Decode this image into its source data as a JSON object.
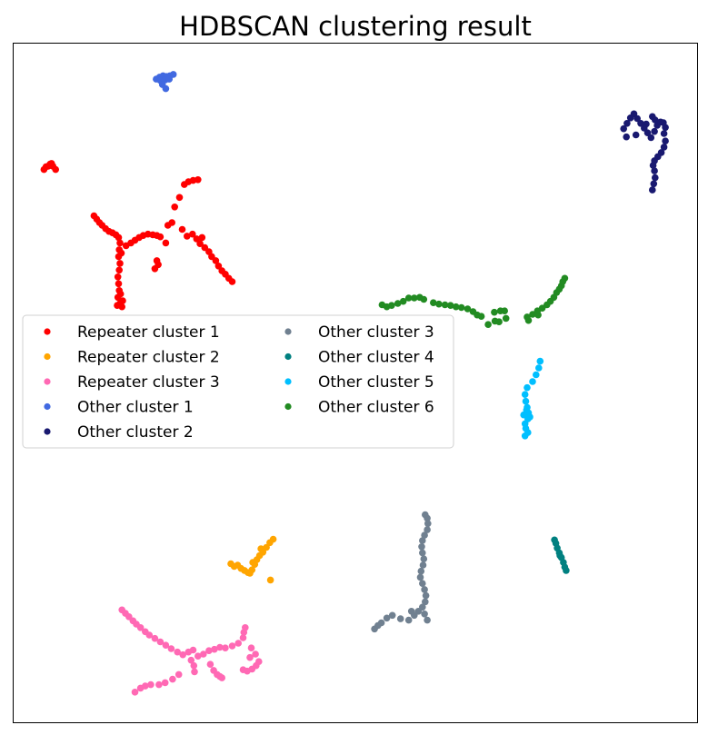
{
  "chart_data": {
    "type": "scatter",
    "title": "HDBSCAN clustering result",
    "xlabel": "",
    "ylabel": "",
    "xlim": [
      0,
      100
    ],
    "ylim": [
      0,
      100
    ],
    "grid": false,
    "axis_ticks": false,
    "legend": {
      "placement": "center-left",
      "columns": 2
    },
    "series": [
      {
        "name": "Repeater cluster 1",
        "color": "#ff0000",
        "points": [
          [
            4.5,
            81.4
          ],
          [
            5.1,
            81.9
          ],
          [
            5.4,
            82.2
          ],
          [
            5.8,
            81.9
          ],
          [
            6.2,
            81.4
          ],
          [
            4.8,
            81.8
          ],
          [
            5.6,
            82.3
          ],
          [
            11.8,
            74.6
          ],
          [
            12.2,
            74.1
          ],
          [
            12.6,
            73.6
          ],
          [
            13.0,
            73.2
          ],
          [
            13.5,
            72.7
          ],
          [
            14.0,
            72.3
          ],
          [
            14.5,
            72.1
          ],
          [
            15.0,
            71.8
          ],
          [
            15.4,
            71.4
          ],
          [
            15.6,
            70.6
          ],
          [
            15.5,
            69.6
          ],
          [
            15.4,
            68.6
          ],
          [
            15.6,
            67.6
          ],
          [
            15.5,
            66.6
          ],
          [
            15.3,
            65.6
          ],
          [
            15.4,
            64.6
          ],
          [
            15.5,
            63.6
          ],
          [
            15.3,
            62.6
          ],
          [
            15.6,
            61.7
          ],
          [
            15.9,
            61.2
          ],
          [
            15.2,
            61.4
          ],
          [
            16.0,
            62.1
          ],
          [
            15.7,
            63.1
          ],
          [
            15.8,
            69.1
          ],
          [
            16.5,
            70.2
          ],
          [
            17.2,
            70.6
          ],
          [
            17.8,
            71.0
          ],
          [
            18.4,
            71.4
          ],
          [
            19.0,
            71.7
          ],
          [
            19.7,
            71.9
          ],
          [
            20.4,
            71.8
          ],
          [
            21.0,
            71.7
          ],
          [
            21.5,
            71.5
          ],
          [
            20.7,
            66.8
          ],
          [
            21.2,
            67.4
          ],
          [
            21.0,
            68.0
          ],
          [
            22.3,
            70.6
          ],
          [
            22.6,
            73.2
          ],
          [
            23.2,
            73.6
          ],
          [
            23.6,
            75.9
          ],
          [
            24.3,
            77.3
          ],
          [
            25.0,
            79.2
          ],
          [
            25.6,
            79.6
          ],
          [
            26.3,
            79.8
          ],
          [
            27.0,
            79.9
          ],
          [
            24.7,
            72.6
          ],
          [
            25.4,
            71.6
          ],
          [
            26.2,
            71.9
          ],
          [
            26.8,
            71.2
          ],
          [
            27.3,
            70.5
          ],
          [
            28.0,
            69.9
          ],
          [
            28.6,
            69.3
          ],
          [
            29.0,
            68.6
          ],
          [
            29.6,
            68.0
          ],
          [
            30.0,
            67.2
          ],
          [
            30.5,
            66.5
          ],
          [
            31.0,
            66.0
          ],
          [
            31.5,
            65.4
          ],
          [
            32.0,
            64.9
          ],
          [
            27.6,
            71.4
          ]
        ]
      },
      {
        "name": "Repeater cluster 2",
        "color": "#ffa500",
        "points": [
          [
            31.8,
            23.4
          ],
          [
            32.3,
            23.0
          ],
          [
            32.8,
            23.2
          ],
          [
            33.3,
            22.7
          ],
          [
            33.8,
            22.4
          ],
          [
            34.3,
            22.1
          ],
          [
            34.9,
            22.5
          ],
          [
            35.3,
            23.3
          ],
          [
            35.6,
            24.0
          ],
          [
            36.0,
            24.6
          ],
          [
            36.5,
            25.1
          ],
          [
            37.0,
            25.8
          ],
          [
            37.5,
            26.5
          ],
          [
            38.0,
            27.0
          ],
          [
            37.6,
            21.0
          ],
          [
            34.6,
            22.0
          ],
          [
            35.0,
            23.6
          ],
          [
            36.2,
            25.6
          ]
        ]
      },
      {
        "name": "Repeater cluster 3",
        "color": "#ff69b4",
        "points": [
          [
            15.9,
            16.6
          ],
          [
            16.4,
            16.1
          ],
          [
            16.9,
            15.6
          ],
          [
            17.5,
            15.0
          ],
          [
            18.0,
            14.5
          ],
          [
            18.6,
            14.0
          ],
          [
            19.3,
            13.4
          ],
          [
            19.9,
            12.9
          ],
          [
            20.7,
            12.4
          ],
          [
            21.5,
            11.9
          ],
          [
            22.3,
            11.4
          ],
          [
            23.1,
            10.9
          ],
          [
            24.0,
            10.4
          ],
          [
            24.8,
            10.0
          ],
          [
            25.6,
            10.4
          ],
          [
            26.3,
            10.7
          ],
          [
            27.0,
            9.8
          ],
          [
            27.8,
            10.1
          ],
          [
            28.6,
            10.6
          ],
          [
            29.4,
            10.8
          ],
          [
            30.2,
            11.1
          ],
          [
            31.0,
            11.0
          ],
          [
            32.0,
            11.3
          ],
          [
            32.9,
            11.7
          ],
          [
            33.6,
            12.5
          ],
          [
            33.7,
            13.3
          ],
          [
            33.9,
            14.0
          ],
          [
            26.0,
            9.2
          ],
          [
            26.4,
            8.4
          ],
          [
            26.5,
            7.5
          ],
          [
            28.8,
            8.6
          ],
          [
            29.3,
            7.7
          ],
          [
            29.8,
            7.1
          ],
          [
            30.2,
            6.8
          ],
          [
            30.5,
            6.6
          ],
          [
            17.8,
            4.5
          ],
          [
            18.6,
            5.1
          ],
          [
            19.3,
            5.4
          ],
          [
            20.1,
            5.6
          ],
          [
            21.3,
            5.6
          ],
          [
            22.2,
            5.9
          ],
          [
            23.3,
            6.4
          ],
          [
            24.2,
            7.1
          ],
          [
            34.6,
            9.6
          ],
          [
            35.4,
            10.1
          ],
          [
            35.9,
            9.0
          ],
          [
            35.5,
            8.4
          ],
          [
            34.9,
            7.9
          ],
          [
            34.2,
            7.6
          ],
          [
            33.6,
            7.8
          ],
          [
            34.8,
            11.0
          ]
        ]
      },
      {
        "name": "Other cluster 1",
        "color": "#4169e1",
        "points": [
          [
            20.9,
            94.7
          ],
          [
            21.4,
            95.0
          ],
          [
            21.9,
            95.2
          ],
          [
            22.4,
            95.1
          ],
          [
            22.9,
            95.2
          ],
          [
            23.4,
            95.4
          ],
          [
            21.5,
            94.5
          ],
          [
            22.2,
            94.6
          ],
          [
            22.8,
            94.7
          ],
          [
            21.8,
            93.9
          ],
          [
            22.3,
            93.3
          ]
        ]
      },
      {
        "name": "Other cluster 2",
        "color": "#191970",
        "points": [
          [
            89.2,
            87.4
          ],
          [
            89.7,
            88.2
          ],
          [
            90.2,
            89.0
          ],
          [
            90.7,
            89.6
          ],
          [
            91.2,
            88.9
          ],
          [
            91.7,
            88.2
          ],
          [
            92.2,
            87.5
          ],
          [
            92.7,
            86.8
          ],
          [
            93.2,
            86.1
          ],
          [
            93.7,
            87.0
          ],
          [
            94.1,
            87.9
          ],
          [
            94.6,
            88.4
          ],
          [
            95.0,
            88.3
          ],
          [
            95.3,
            87.6
          ],
          [
            95.1,
            86.7
          ],
          [
            95.3,
            85.6
          ],
          [
            95.1,
            84.7
          ],
          [
            94.7,
            83.9
          ],
          [
            94.2,
            83.3
          ],
          [
            93.7,
            82.7
          ],
          [
            93.5,
            82.0
          ],
          [
            93.7,
            81.2
          ],
          [
            93.8,
            80.2
          ],
          [
            93.6,
            79.3
          ],
          [
            93.4,
            78.4
          ],
          [
            93.8,
            88.7
          ],
          [
            92.5,
            88.1
          ],
          [
            91.0,
            86.5
          ],
          [
            89.6,
            86.2
          ],
          [
            93.4,
            89.2
          ]
        ]
      },
      {
        "name": "Other cluster 3",
        "color": "#708090",
        "points": [
          [
            52.8,
            13.8
          ],
          [
            53.3,
            14.3
          ],
          [
            53.8,
            14.7
          ],
          [
            54.6,
            15.4
          ],
          [
            55.4,
            15.8
          ],
          [
            56.6,
            15.3
          ],
          [
            57.8,
            15.1
          ],
          [
            58.6,
            15.8
          ],
          [
            59.2,
            16.4
          ],
          [
            59.8,
            17.0
          ],
          [
            60.2,
            17.8
          ],
          [
            60.3,
            18.7
          ],
          [
            60.1,
            19.6
          ],
          [
            59.8,
            20.5
          ],
          [
            59.5,
            21.4
          ],
          [
            59.6,
            22.3
          ],
          [
            59.9,
            23.2
          ],
          [
            60.0,
            24.1
          ],
          [
            59.8,
            25.0
          ],
          [
            59.7,
            25.9
          ],
          [
            59.8,
            26.8
          ],
          [
            60.1,
            27.6
          ],
          [
            60.5,
            28.4
          ],
          [
            60.6,
            29.3
          ],
          [
            60.5,
            30.1
          ],
          [
            60.2,
            30.6
          ],
          [
            60.5,
            15.1
          ],
          [
            60.1,
            16.0
          ],
          [
            58.2,
            16.4
          ]
        ]
      },
      {
        "name": "Other cluster 4",
        "color": "#008080",
        "points": [
          [
            79.3,
            26.4
          ],
          [
            79.5,
            25.7
          ],
          [
            79.8,
            25.0
          ],
          [
            80.1,
            24.3
          ],
          [
            80.4,
            23.6
          ],
          [
            80.6,
            22.9
          ],
          [
            80.8,
            22.4
          ],
          [
            79.1,
            26.9
          ],
          [
            79.9,
            24.6
          ]
        ]
      },
      {
        "name": "Other cluster 5",
        "color": "#00bfff",
        "points": [
          [
            77.0,
            53.2
          ],
          [
            76.8,
            52.2
          ],
          [
            76.4,
            51.2
          ],
          [
            75.9,
            50.2
          ],
          [
            75.1,
            49.3
          ],
          [
            74.8,
            48.3
          ],
          [
            74.9,
            47.3
          ],
          [
            75.1,
            46.4
          ],
          [
            75.3,
            45.6
          ],
          [
            75.2,
            44.7
          ],
          [
            74.8,
            44.0
          ],
          [
            74.9,
            43.3
          ],
          [
            75.2,
            42.7
          ],
          [
            74.8,
            42.2
          ],
          [
            75.5,
            45.0
          ],
          [
            75.0,
            46.0
          ],
          [
            74.6,
            45.3
          ]
        ]
      },
      {
        "name": "Other cluster 6",
        "color": "#228b22",
        "points": [
          [
            53.9,
            61.5
          ],
          [
            54.6,
            61.2
          ],
          [
            55.3,
            61.4
          ],
          [
            56.2,
            61.7
          ],
          [
            57.0,
            62.0
          ],
          [
            57.8,
            62.5
          ],
          [
            58.6,
            62.5
          ],
          [
            59.4,
            62.6
          ],
          [
            60.0,
            62.3
          ],
          [
            61.4,
            61.8
          ],
          [
            62.2,
            61.6
          ],
          [
            63.1,
            61.5
          ],
          [
            63.9,
            61.4
          ],
          [
            64.7,
            61.2
          ],
          [
            65.5,
            61.1
          ],
          [
            66.4,
            60.9
          ],
          [
            67.2,
            60.5
          ],
          [
            67.8,
            60.0
          ],
          [
            68.4,
            59.8
          ],
          [
            70.3,
            60.4
          ],
          [
            71.2,
            60.6
          ],
          [
            71.8,
            60.6
          ],
          [
            72.0,
            59.5
          ],
          [
            70.4,
            59.1
          ],
          [
            71.0,
            59.0
          ],
          [
            75.1,
            59.7
          ],
          [
            75.3,
            59.2
          ],
          [
            75.9,
            60.1
          ],
          [
            76.6,
            60.6
          ],
          [
            77.3,
            61.0
          ],
          [
            78.0,
            61.5
          ],
          [
            78.5,
            62.0
          ],
          [
            79.0,
            62.6
          ],
          [
            79.4,
            63.3
          ],
          [
            79.8,
            63.8
          ],
          [
            80.1,
            64.3
          ],
          [
            80.3,
            64.9
          ],
          [
            80.6,
            65.4
          ],
          [
            76.7,
            60.0
          ],
          [
            69.4,
            58.6
          ]
        ]
      }
    ]
  }
}
